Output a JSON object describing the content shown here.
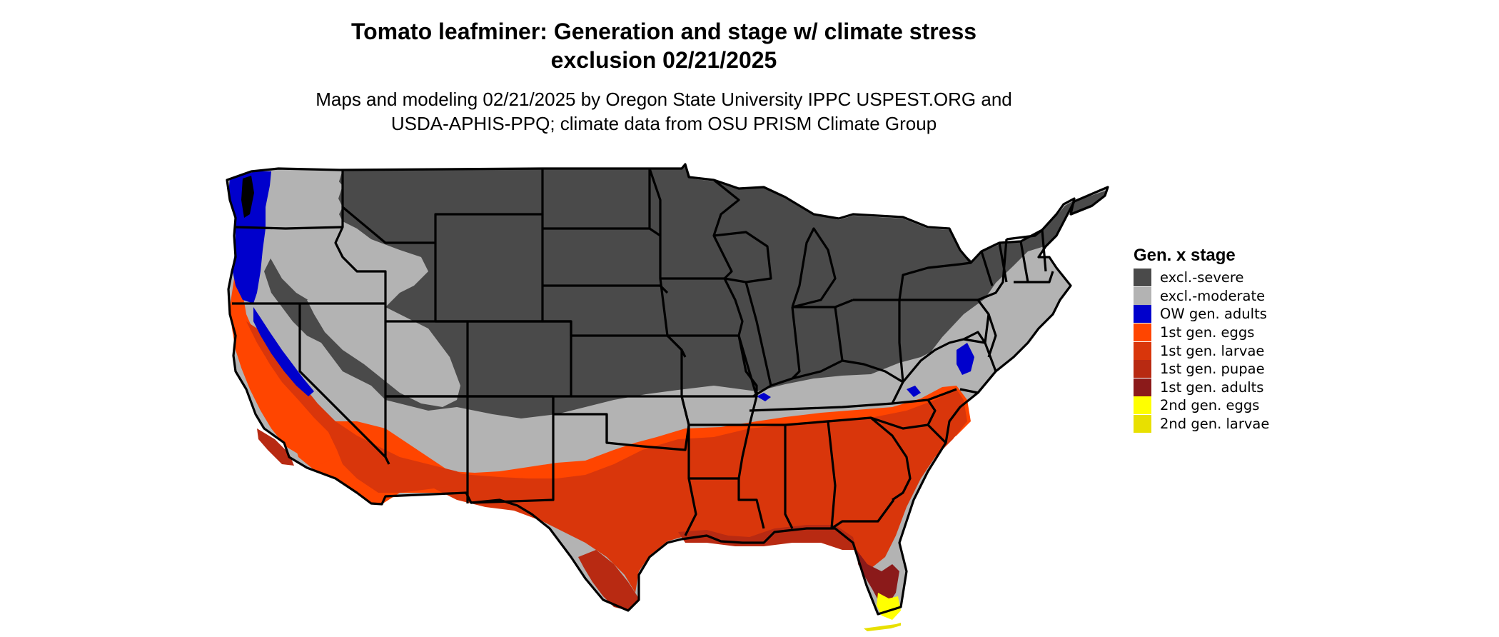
{
  "title": {
    "line1": "Tomato leafminer: Generation and stage w/ climate stress",
    "line2": "exclusion 02/21/2025"
  },
  "subtitle": {
    "line1": "Maps and modeling 02/21/2025 by Oregon State University IPPC USPEST.ORG and",
    "line2": "USDA-APHIS-PPQ; climate data from OSU PRISM Climate Group"
  },
  "legend": {
    "title": "Gen. x stage",
    "items": [
      {
        "label": "excl.-severe",
        "color": "#4a4a4a"
      },
      {
        "label": "excl.-moderate",
        "color": "#b3b3b3"
      },
      {
        "label": "OW gen. adults",
        "color": "#0000cc"
      },
      {
        "label": "1st gen. eggs",
        "color": "#ff4500"
      },
      {
        "label": "1st gen. larvae",
        "color": "#d9360b"
      },
      {
        "label": "1st gen. pupae",
        "color": "#b82a12"
      },
      {
        "label": "1st gen. adults",
        "color": "#8b1a1a"
      },
      {
        "label": "2nd gen. eggs",
        "color": "#ffff00"
      },
      {
        "label": "2nd gen. larvae",
        "color": "#e8e000"
      }
    ]
  },
  "map": {
    "region": "conterminous-united-states",
    "state_border_color": "#000000"
  }
}
